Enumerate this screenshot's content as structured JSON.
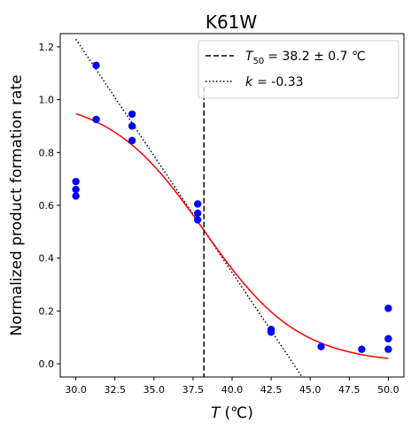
{
  "chart_data": {
    "type": "scatter",
    "title": "K61W",
    "xlabel": {
      "symbol": "T",
      "unit": "(℃)"
    },
    "ylabel": "Normalized product formation rate",
    "xlim": [
      29.0,
      51.0
    ],
    "ylim": [
      -0.05,
      1.25
    ],
    "xticks": [
      30.0,
      32.5,
      35.0,
      37.5,
      40.0,
      42.5,
      45.0,
      47.5,
      50.0
    ],
    "xtick_labels": [
      "30.0",
      "32.5",
      "35.0",
      "37.5",
      "40.0",
      "42.5",
      "45.0",
      "47.5",
      "50.0"
    ],
    "yticks": [
      0.0,
      0.2,
      0.4,
      0.6,
      0.8,
      1.0,
      1.2
    ],
    "ytick_labels": [
      "0.0",
      "0.2",
      "0.4",
      "0.6",
      "0.8",
      "1.0",
      "1.2"
    ],
    "grid": false,
    "legend_position": "top-right",
    "points": {
      "color": "#0000ff",
      "x": [
        30.0,
        30.0,
        30.0,
        31.3,
        31.3,
        33.6,
        33.6,
        33.6,
        37.8,
        37.8,
        37.8,
        42.5,
        42.5,
        45.7,
        48.3,
        50.0,
        50.0,
        50.0
      ],
      "y": [
        0.69,
        0.66,
        0.635,
        1.13,
        0.925,
        0.945,
        0.9,
        0.845,
        0.605,
        0.57,
        0.545,
        0.13,
        0.12,
        0.065,
        0.055,
        0.21,
        0.095,
        0.055
      ]
    },
    "fit_curve": {
      "type": "sigmoid",
      "color": "#ff0000",
      "x_range": [
        30.0,
        50.0
      ],
      "midpoint": 38.2,
      "top": 1.01,
      "bottom": 0.0,
      "slope": 0.33
    },
    "t50_line": {
      "x": 38.2,
      "style": "dashed",
      "color": "#000000",
      "label_symbol": "T",
      "label_subscript": "50",
      "label_value": "= 38.2 ± 0.7 ℃"
    },
    "slope_line": {
      "x0": 38.2,
      "y0": 0.505,
      "slope": -0.0883,
      "x_range": [
        30.0,
        45.0
      ],
      "style": "dotted",
      "color": "#000000",
      "label_symbol": "k",
      "label_value": "= -0.33"
    }
  }
}
